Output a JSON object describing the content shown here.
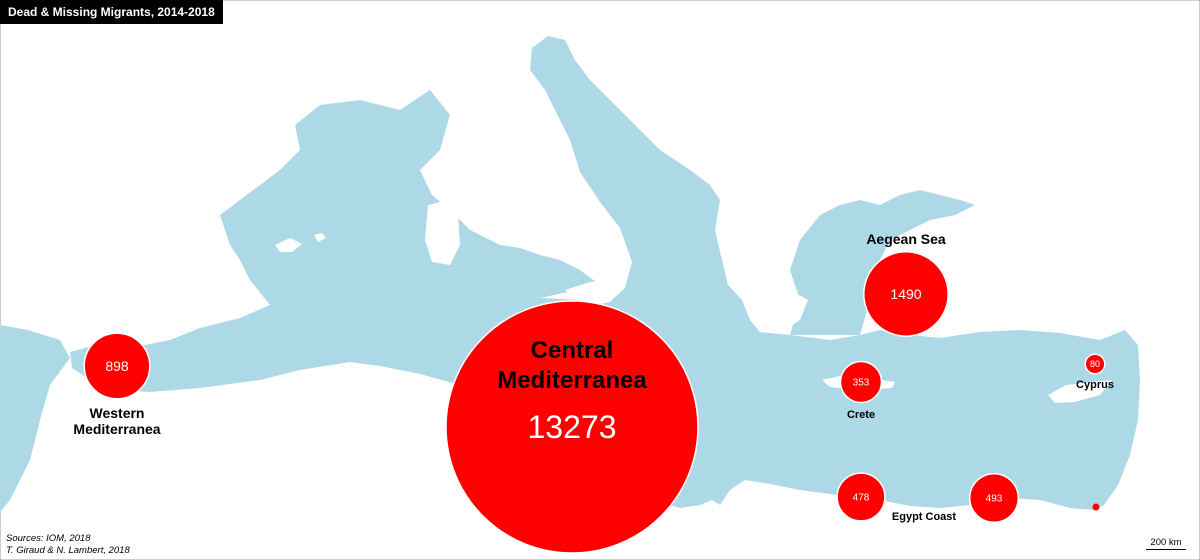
{
  "title": "Dead & Missing Migrants, 2014-2018",
  "sources": "Sources: IOM, 2018",
  "authors": "T. Giraud & N. Lambert, 2018",
  "scale_label": "200 km",
  "colors": {
    "sea": "#add8e6",
    "land": "#ffffff",
    "circle": "#ff0000",
    "circle_stroke": "#ffffff"
  },
  "regions": [
    {
      "id": "western-mediterranea",
      "label_lines": [
        "Western",
        "Mediterranea"
      ],
      "value": 898
    },
    {
      "id": "central-mediterranea",
      "label_lines": [
        "Central",
        "Mediterranea"
      ],
      "value": 13273
    },
    {
      "id": "aegean-sea",
      "label_lines": [
        "Aegean Sea"
      ],
      "value": 1490
    },
    {
      "id": "crete",
      "label_lines": [
        "Crete"
      ],
      "value": 353
    },
    {
      "id": "cyprus",
      "label_lines": [
        "Cyprus"
      ],
      "value": 80
    },
    {
      "id": "egypt-coast",
      "label_lines": [
        "Egypt Coast"
      ],
      "value": 478
    },
    {
      "id": "egypt-coast-east",
      "label_lines": [],
      "value": 493
    }
  ]
}
